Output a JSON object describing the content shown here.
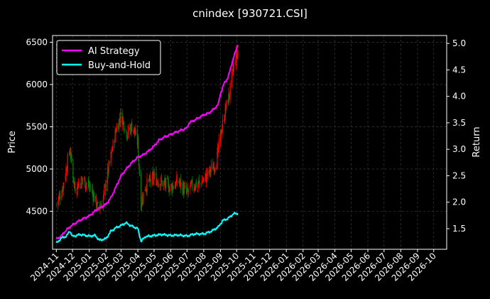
{
  "chart_data": {
    "type": "line",
    "title": "cnindex [930721.CSI]",
    "ylabel_left": "Price",
    "ylabel_right": "Return",
    "grid": true,
    "legend_position": "top-left",
    "x_tick_labels": [
      "2024-11",
      "2024-12",
      "2025-01",
      "2025-02",
      "2025-03",
      "2025-04",
      "2025-05",
      "2025-06",
      "2025-07",
      "2025-08",
      "2025-09",
      "2025-10",
      "2025-11",
      "2025-12",
      "2026-01",
      "2026-02",
      "2026-03",
      "2026-04",
      "2026-05",
      "2026-06",
      "2026-07",
      "2026-08",
      "2026-09",
      "2026-10"
    ],
    "x_range": [
      "2024-10-25",
      "2026-10-25"
    ],
    "left_axis": {
      "range": [
        4050,
        6580
      ],
      "ticks": [
        "4500",
        "5000",
        "5500",
        "6000",
        "6500"
      ]
    },
    "right_axis": {
      "range": [
        1.11,
        5.15
      ],
      "ticks": [
        "1.5",
        "2.0",
        "2.5",
        "3.0",
        "3.5",
        "4.0",
        "4.5",
        "5.0"
      ]
    },
    "colors": {
      "ai": "#ff00ff",
      "bh": "#00ffff",
      "up": "#ff0000",
      "down": "#008000",
      "grid": "#3a3a3a",
      "axis": "#ffffff"
    },
    "series": [
      {
        "name": "AI Strategy",
        "axis": "right",
        "points": [
          [
            "2024-11-01",
            1.3
          ],
          [
            "2024-11-10",
            1.36
          ],
          [
            "2024-11-20",
            1.48
          ],
          [
            "2024-12-01",
            1.57
          ],
          [
            "2024-12-15",
            1.66
          ],
          [
            "2025-01-01",
            1.74
          ],
          [
            "2025-01-15",
            1.86
          ],
          [
            "2025-02-01",
            1.96
          ],
          [
            "2025-02-10",
            2.08
          ],
          [
            "2025-02-20",
            2.3
          ],
          [
            "2025-03-01",
            2.5
          ],
          [
            "2025-03-10",
            2.62
          ],
          [
            "2025-03-20",
            2.74
          ],
          [
            "2025-04-01",
            2.85
          ],
          [
            "2025-04-10",
            2.89
          ],
          [
            "2025-04-20",
            2.96
          ],
          [
            "2025-05-01",
            3.06
          ],
          [
            "2025-05-10",
            3.17
          ],
          [
            "2025-05-20",
            3.23
          ],
          [
            "2025-06-01",
            3.28
          ],
          [
            "2025-06-10",
            3.32
          ],
          [
            "2025-06-20",
            3.36
          ],
          [
            "2025-07-01",
            3.4
          ],
          [
            "2025-07-05",
            3.5
          ],
          [
            "2025-07-15",
            3.55
          ],
          [
            "2025-07-25",
            3.61
          ],
          [
            "2025-08-01",
            3.65
          ],
          [
            "2025-08-10",
            3.68
          ],
          [
            "2025-08-20",
            3.76
          ],
          [
            "2025-08-28",
            3.85
          ],
          [
            "2025-09-01",
            4.05
          ],
          [
            "2025-09-08",
            4.25
          ],
          [
            "2025-09-15",
            4.35
          ],
          [
            "2025-09-22",
            4.62
          ],
          [
            "2025-09-28",
            4.82
          ],
          [
            "2025-10-03",
            4.97
          ]
        ]
      },
      {
        "name": "Buy-and-Hold",
        "axis": "right",
        "points": [
          [
            "2024-11-01",
            1.22
          ],
          [
            "2024-11-10",
            1.32
          ],
          [
            "2024-11-20",
            1.36
          ],
          [
            "2024-11-26",
            1.46
          ],
          [
            "2024-12-01",
            1.35
          ],
          [
            "2024-12-15",
            1.39
          ],
          [
            "2025-01-01",
            1.36
          ],
          [
            "2025-01-12",
            1.37
          ],
          [
            "2025-01-20",
            1.28
          ],
          [
            "2025-02-01",
            1.31
          ],
          [
            "2025-02-10",
            1.45
          ],
          [
            "2025-02-20",
            1.52
          ],
          [
            "2025-03-01",
            1.56
          ],
          [
            "2025-03-10",
            1.61
          ],
          [
            "2025-03-20",
            1.55
          ],
          [
            "2025-04-01",
            1.5
          ],
          [
            "2025-04-07",
            1.26
          ],
          [
            "2025-04-15",
            1.35
          ],
          [
            "2025-05-01",
            1.37
          ],
          [
            "2025-05-15",
            1.39
          ],
          [
            "2025-06-01",
            1.37
          ],
          [
            "2025-06-15",
            1.38
          ],
          [
            "2025-07-01",
            1.36
          ],
          [
            "2025-07-15",
            1.4
          ],
          [
            "2025-08-01",
            1.4
          ],
          [
            "2025-08-15",
            1.45
          ],
          [
            "2025-08-28",
            1.53
          ],
          [
            "2025-09-05",
            1.65
          ],
          [
            "2025-09-15",
            1.69
          ],
          [
            "2025-09-25",
            1.78
          ],
          [
            "2025-10-03",
            1.79
          ]
        ]
      }
    ],
    "price_close_path": [
      [
        "2024-11-01",
        4580
      ],
      [
        "2024-11-12",
        4760
      ],
      [
        "2024-11-26",
        5230
      ],
      [
        "2024-12-05",
        4780
      ],
      [
        "2024-12-20",
        4880
      ],
      [
        "2025-01-05",
        4760
      ],
      [
        "2025-01-18",
        4520
      ],
      [
        "2025-01-25",
        4600
      ],
      [
        "2025-02-05",
        4980
      ],
      [
        "2025-02-20",
        5480
      ],
      [
        "2025-03-01",
        5640
      ],
      [
        "2025-03-12",
        5420
      ],
      [
        "2025-03-22",
        5520
      ],
      [
        "2025-04-01",
        5300
      ],
      [
        "2025-04-07",
        4600
      ],
      [
        "2025-04-15",
        4800
      ],
      [
        "2025-05-01",
        4900
      ],
      [
        "2025-05-15",
        4840
      ],
      [
        "2025-06-01",
        4780
      ],
      [
        "2025-06-15",
        4860
      ],
      [
        "2025-07-01",
        4700
      ],
      [
        "2025-07-10",
        4800
      ],
      [
        "2025-07-25",
        4830
      ],
      [
        "2025-08-05",
        4900
      ],
      [
        "2025-08-15",
        5000
      ],
      [
        "2025-08-25",
        5100
      ],
      [
        "2025-09-01",
        5400
      ],
      [
        "2025-09-10",
        5700
      ],
      [
        "2025-09-18",
        5900
      ],
      [
        "2025-09-25",
        6200
      ],
      [
        "2025-10-03",
        6400
      ]
    ]
  }
}
